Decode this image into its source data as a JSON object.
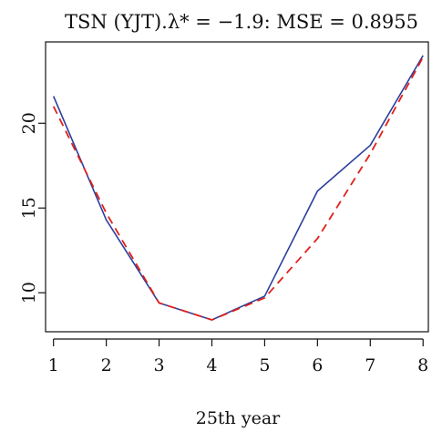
{
  "chart_data": {
    "type": "line",
    "title": "TSN (YJT).λ* = −1.9: MSE = 0.8955",
    "xlabel": "25th year",
    "ylabel": "",
    "x": [
      1,
      2,
      3,
      4,
      5,
      6,
      7,
      8
    ],
    "xlim": [
      0.85,
      8.1
    ],
    "ylim": [
      7.7,
      24.8
    ],
    "x_ticks": [
      1,
      2,
      3,
      4,
      5,
      6,
      7,
      8
    ],
    "y_ticks": [
      10,
      15,
      20
    ],
    "y_tick_labels": [
      "10",
      "15",
      "20"
    ],
    "grid": false,
    "legend": "none",
    "series": [
      {
        "color": "#2b3f9e",
        "dash": "solid",
        "values": [
          21.6,
          14.3,
          9.4,
          8.4,
          9.8,
          16.0,
          18.7,
          24.0
        ]
      },
      {
        "color": "#e0201b",
        "dash": "dashed",
        "values": [
          21.0,
          14.7,
          9.4,
          8.4,
          9.7,
          13.2,
          18.2,
          23.9
        ]
      }
    ]
  }
}
